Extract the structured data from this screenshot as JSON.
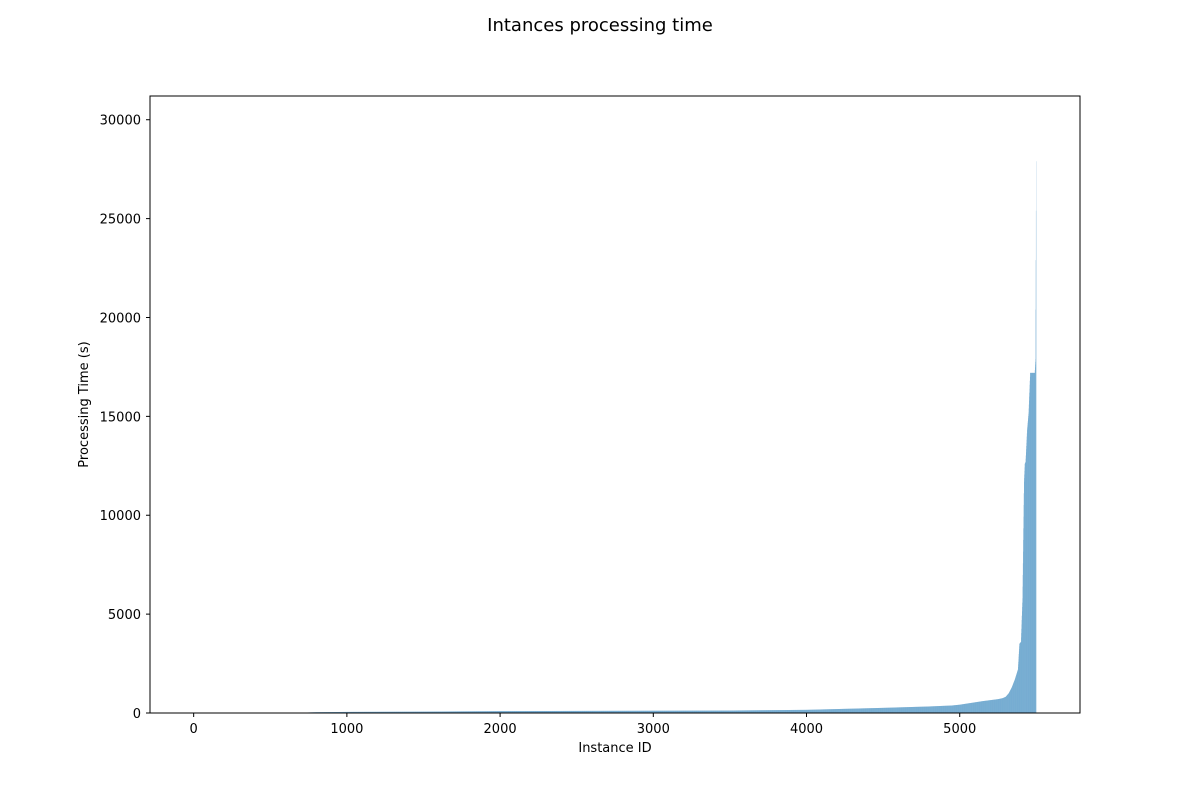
{
  "chart_data": {
    "type": "bar",
    "title": "Intances processing time",
    "xlabel": "Instance ID",
    "ylabel": "Processing Time (s)",
    "xlim": [
      -285,
      5785
    ],
    "ylim": [
      0,
      31200
    ],
    "x_ticks": [
      0,
      1000,
      2000,
      3000,
      4000,
      5000
    ],
    "y_ticks": [
      0,
      5000,
      10000,
      15000,
      20000,
      25000,
      30000
    ],
    "bar_color": "#1f77b4",
    "grid": false,
    "n_instances": 5500,
    "values_sorted_ascending": true,
    "profile_x": [
      0,
      500,
      700,
      800,
      1000,
      1500,
      2000,
      2500,
      3000,
      3500,
      4000,
      4200,
      4500,
      4800,
      4950,
      5000,
      5050,
      5100,
      5150,
      5200,
      5250,
      5280,
      5300,
      5320,
      5340,
      5360,
      5380,
      5390,
      5400,
      5410,
      5420,
      5425,
      5430,
      5440,
      5450,
      5460,
      5470,
      5480,
      5490,
      5495,
      5499
    ],
    "profile_y": [
      0,
      5,
      15,
      40,
      55,
      70,
      95,
      105,
      115,
      125,
      160,
      200,
      260,
      330,
      380,
      420,
      480,
      540,
      600,
      650,
      700,
      750,
      820,
      1000,
      1300,
      1700,
      2200,
      3500,
      3600,
      5800,
      11700,
      12600,
      12700,
      14300,
      15200,
      17200,
      17200,
      17200,
      17200,
      17900,
      27900
    ]
  }
}
